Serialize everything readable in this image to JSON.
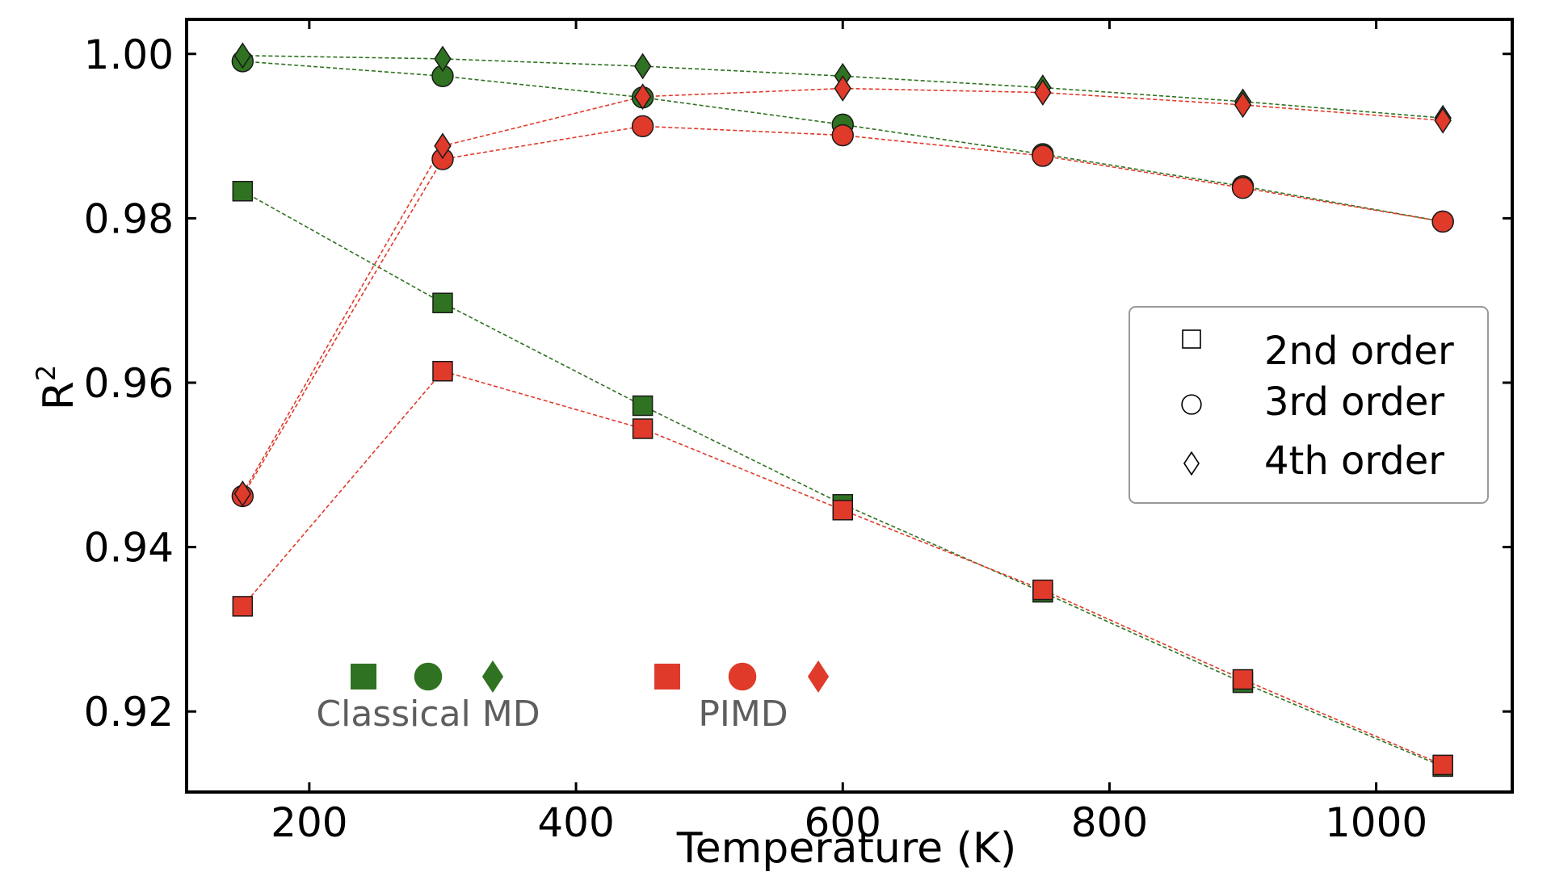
{
  "chart_data": {
    "type": "scatter",
    "title": "",
    "xlabel": "Temperature (K)",
    "ylabel_base": "R",
    "ylabel_sup": "2",
    "xlim": [
      108,
      1102
    ],
    "ylim": [
      0.9102,
      1.0042
    ],
    "x_ticks": [
      200,
      400,
      600,
      800,
      1000
    ],
    "x_tick_labels": [
      "200",
      "400",
      "600",
      "800",
      "1000"
    ],
    "y_ticks": [
      0.92,
      0.94,
      0.96,
      0.98,
      1.0
    ],
    "y_tick_labels": [
      "0.92",
      "0.94",
      "0.96",
      "0.98",
      "1.00"
    ],
    "grid": false,
    "x": [
      150,
      300,
      450,
      600,
      750,
      900,
      1050
    ],
    "series": [
      {
        "name": "Classical MD 2nd order",
        "method": "Classical MD",
        "order": "2nd order",
        "marker": "square",
        "color": "#2f7221",
        "values": [
          0.9833,
          0.9697,
          0.9572,
          0.9452,
          0.9345,
          0.9235,
          0.9133
        ]
      },
      {
        "name": "Classical MD 3rd order",
        "method": "Classical MD",
        "order": "3rd order",
        "marker": "circle",
        "color": "#2f7221",
        "values": [
          0.9991,
          0.9973,
          0.9947,
          0.9914,
          0.9878,
          0.9839,
          0.9796
        ]
      },
      {
        "name": "Classical MD 4th order",
        "method": "Classical MD",
        "order": "4th order",
        "marker": "diamond",
        "color": "#2f7221",
        "values": [
          0.9998,
          0.9994,
          0.9985,
          0.9973,
          0.9959,
          0.9942,
          0.9922
        ]
      },
      {
        "name": "PIMD 2nd order",
        "method": "PIMD",
        "order": "2nd order",
        "marker": "square",
        "color": "#e03a2a",
        "values": [
          0.9328,
          0.9614,
          0.9544,
          0.9445,
          0.9348,
          0.9239,
          0.9135
        ]
      },
      {
        "name": "PIMD 3rd order",
        "method": "PIMD",
        "order": "3rd order",
        "marker": "circle",
        "color": "#e03a2a",
        "values": [
          0.9462,
          0.9872,
          0.9912,
          0.9901,
          0.9876,
          0.9837,
          0.9796
        ]
      },
      {
        "name": "PIMD 4th order",
        "method": "PIMD",
        "order": "4th order",
        "marker": "diamond",
        "color": "#e03a2a",
        "values": [
          0.9465,
          0.9888,
          0.9948,
          0.9958,
          0.9953,
          0.9938,
          0.9919
        ]
      }
    ],
    "legend": {
      "placement": "center-right",
      "entries": [
        {
          "label": "2nd order",
          "marker": "square"
        },
        {
          "label": "3rd order",
          "marker": "circle"
        },
        {
          "label": "4th order",
          "marker": "diamond"
        }
      ]
    },
    "annotations": [
      {
        "label": "Classical MD",
        "color": "#2f7221"
      },
      {
        "label": "PIMD",
        "color": "#e03a2a"
      }
    ]
  }
}
